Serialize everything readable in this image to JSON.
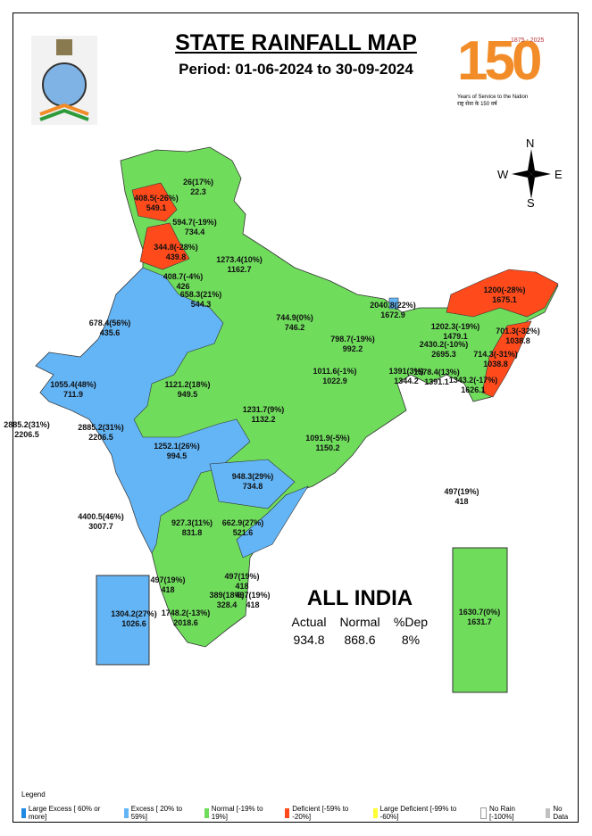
{
  "header": {
    "title": "STATE RAINFALL MAP",
    "period": "Period: 01-06-2024 to 30-09-2024"
  },
  "logo": {
    "number": "150",
    "years": "1875 - 2025",
    "tagline": "Years of Service to the Nation",
    "tagline_hindi": "राष्ट्र सेवा के 150 वर्ष"
  },
  "compass": {
    "n": "N",
    "s": "S",
    "e": "E",
    "w": "W"
  },
  "colors": {
    "large_excess": "#1e88e5",
    "excess": "#64b5f6",
    "normal": "#6fdc5c",
    "deficient": "#ff4a1c",
    "large_deficient": "#ffff33",
    "no_rain": "#ffffff",
    "no_data": "#c0c0c0"
  },
  "regions": [
    {
      "actual": "26(17%)",
      "normal": "22.3",
      "category": "normal"
    },
    {
      "actual": "408.5(-26%)",
      "normal": "549.1",
      "category": "deficient"
    },
    {
      "actual": "594.7(-19%)",
      "normal": "734.4",
      "category": "normal"
    },
    {
      "actual": "344.8(-28%)",
      "normal": "439.8",
      "category": "deficient"
    },
    {
      "actual": "1273.4(10%)",
      "normal": "1162.7",
      "category": "normal"
    },
    {
      "actual": "408.7(-4%)",
      "normal": "426",
      "category": "normal"
    },
    {
      "actual": "658.3(21%)",
      "normal": "544.3",
      "category": "excess"
    },
    {
      "actual": "678.4(56%)",
      "normal": "435.6",
      "category": "excess"
    },
    {
      "actual": "744.9(0%)",
      "normal": "746.2",
      "category": "normal"
    },
    {
      "actual": "2040.8(22%)",
      "normal": "1672.9",
      "category": "excess"
    },
    {
      "actual": "1200(-28%)",
      "normal": "1675.1",
      "category": "deficient"
    },
    {
      "actual": "1202.3(-19%)",
      "normal": "1479.1",
      "category": "normal"
    },
    {
      "actual": "701.3(-32%)",
      "normal": "1038.8",
      "category": "deficient"
    },
    {
      "actual": "2430.2(-10%)",
      "normal": "2695.3",
      "category": "normal"
    },
    {
      "actual": "714.3(-31%)",
      "normal": "1038.8",
      "category": "deficient"
    },
    {
      "actual": "798.7(-19%)",
      "normal": "992.2",
      "category": "normal"
    },
    {
      "actual": "1391(3%)",
      "normal": "1344.2",
      "category": "normal"
    },
    {
      "actual": "1578.4(13%)",
      "normal": "1391.1",
      "category": "normal"
    },
    {
      "actual": "1343.2(-17%)",
      "normal": "1626.1",
      "category": "normal"
    },
    {
      "actual": "1055.4(48%)",
      "normal": "711.9",
      "category": "excess"
    },
    {
      "actual": "1121.2(18%)",
      "normal": "949.5",
      "category": "normal"
    },
    {
      "actual": "1011.6(-1%)",
      "normal": "1022.9",
      "category": "normal"
    },
    {
      "actual": "1231.7(9%)",
      "normal": "1132.2",
      "category": "normal"
    },
    {
      "actual": "1091.9(-5%)",
      "normal": "1150.2",
      "category": "normal"
    },
    {
      "actual": "2885.2(31%)",
      "normal": "2206.5",
      "category": "excess"
    },
    {
      "actual": "2885.2(31%)",
      "normal": "2206.5",
      "category": "excess"
    },
    {
      "actual": "1252.1(26%)",
      "normal": "994.5",
      "category": "excess"
    },
    {
      "actual": "948.3(29%)",
      "normal": "734.8",
      "category": "excess"
    },
    {
      "actual": "497(19%)",
      "normal": "418",
      "category": "normal"
    },
    {
      "actual": "4400.5(46%)",
      "normal": "3007.7",
      "category": "excess"
    },
    {
      "actual": "927.3(11%)",
      "normal": "831.8",
      "category": "normal"
    },
    {
      "actual": "662.9(27%)",
      "normal": "521.6",
      "category": "excess"
    },
    {
      "actual": "497(19%)",
      "normal": "418",
      "category": "normal"
    },
    {
      "actual": "497(19%)",
      "normal": "418",
      "category": "normal"
    },
    {
      "actual": "389(18%)",
      "normal": "328.4",
      "category": "normal"
    },
    {
      "actual": "497(19%)",
      "normal": "418",
      "category": "normal"
    },
    {
      "actual": "1748.2(-13%)",
      "normal": "2018.6",
      "category": "normal"
    },
    {
      "actual": "1304.2(27%)",
      "normal": "1026.6",
      "category": "excess"
    },
    {
      "actual": "1630.7(0%)",
      "normal": "1631.7",
      "category": "normal"
    }
  ],
  "all_india": {
    "title": "ALL INDIA",
    "headers": [
      "Actual",
      "Normal",
      "%Dep"
    ],
    "values": [
      "934.8",
      "868.6",
      "8%"
    ]
  },
  "legend": {
    "title": "Legend",
    "items": [
      {
        "label": "Large Excess [ 60% or more]",
        "color": "#1e88e5"
      },
      {
        "label": "Excess [ 20% to 59%]",
        "color": "#64b5f6"
      },
      {
        "label": "Normal [-19% to 19%]",
        "color": "#6fdc5c"
      },
      {
        "label": "Deficient [-59% to -20%]",
        "color": "#ff4a1c"
      },
      {
        "label": "Large Deficient [-99% to -60%]",
        "color": "#ffff33"
      },
      {
        "label": "No Rain  [-100%]",
        "color": "#ffffff"
      },
      {
        "label": "No Data",
        "color": "#c0c0c0"
      }
    ]
  }
}
